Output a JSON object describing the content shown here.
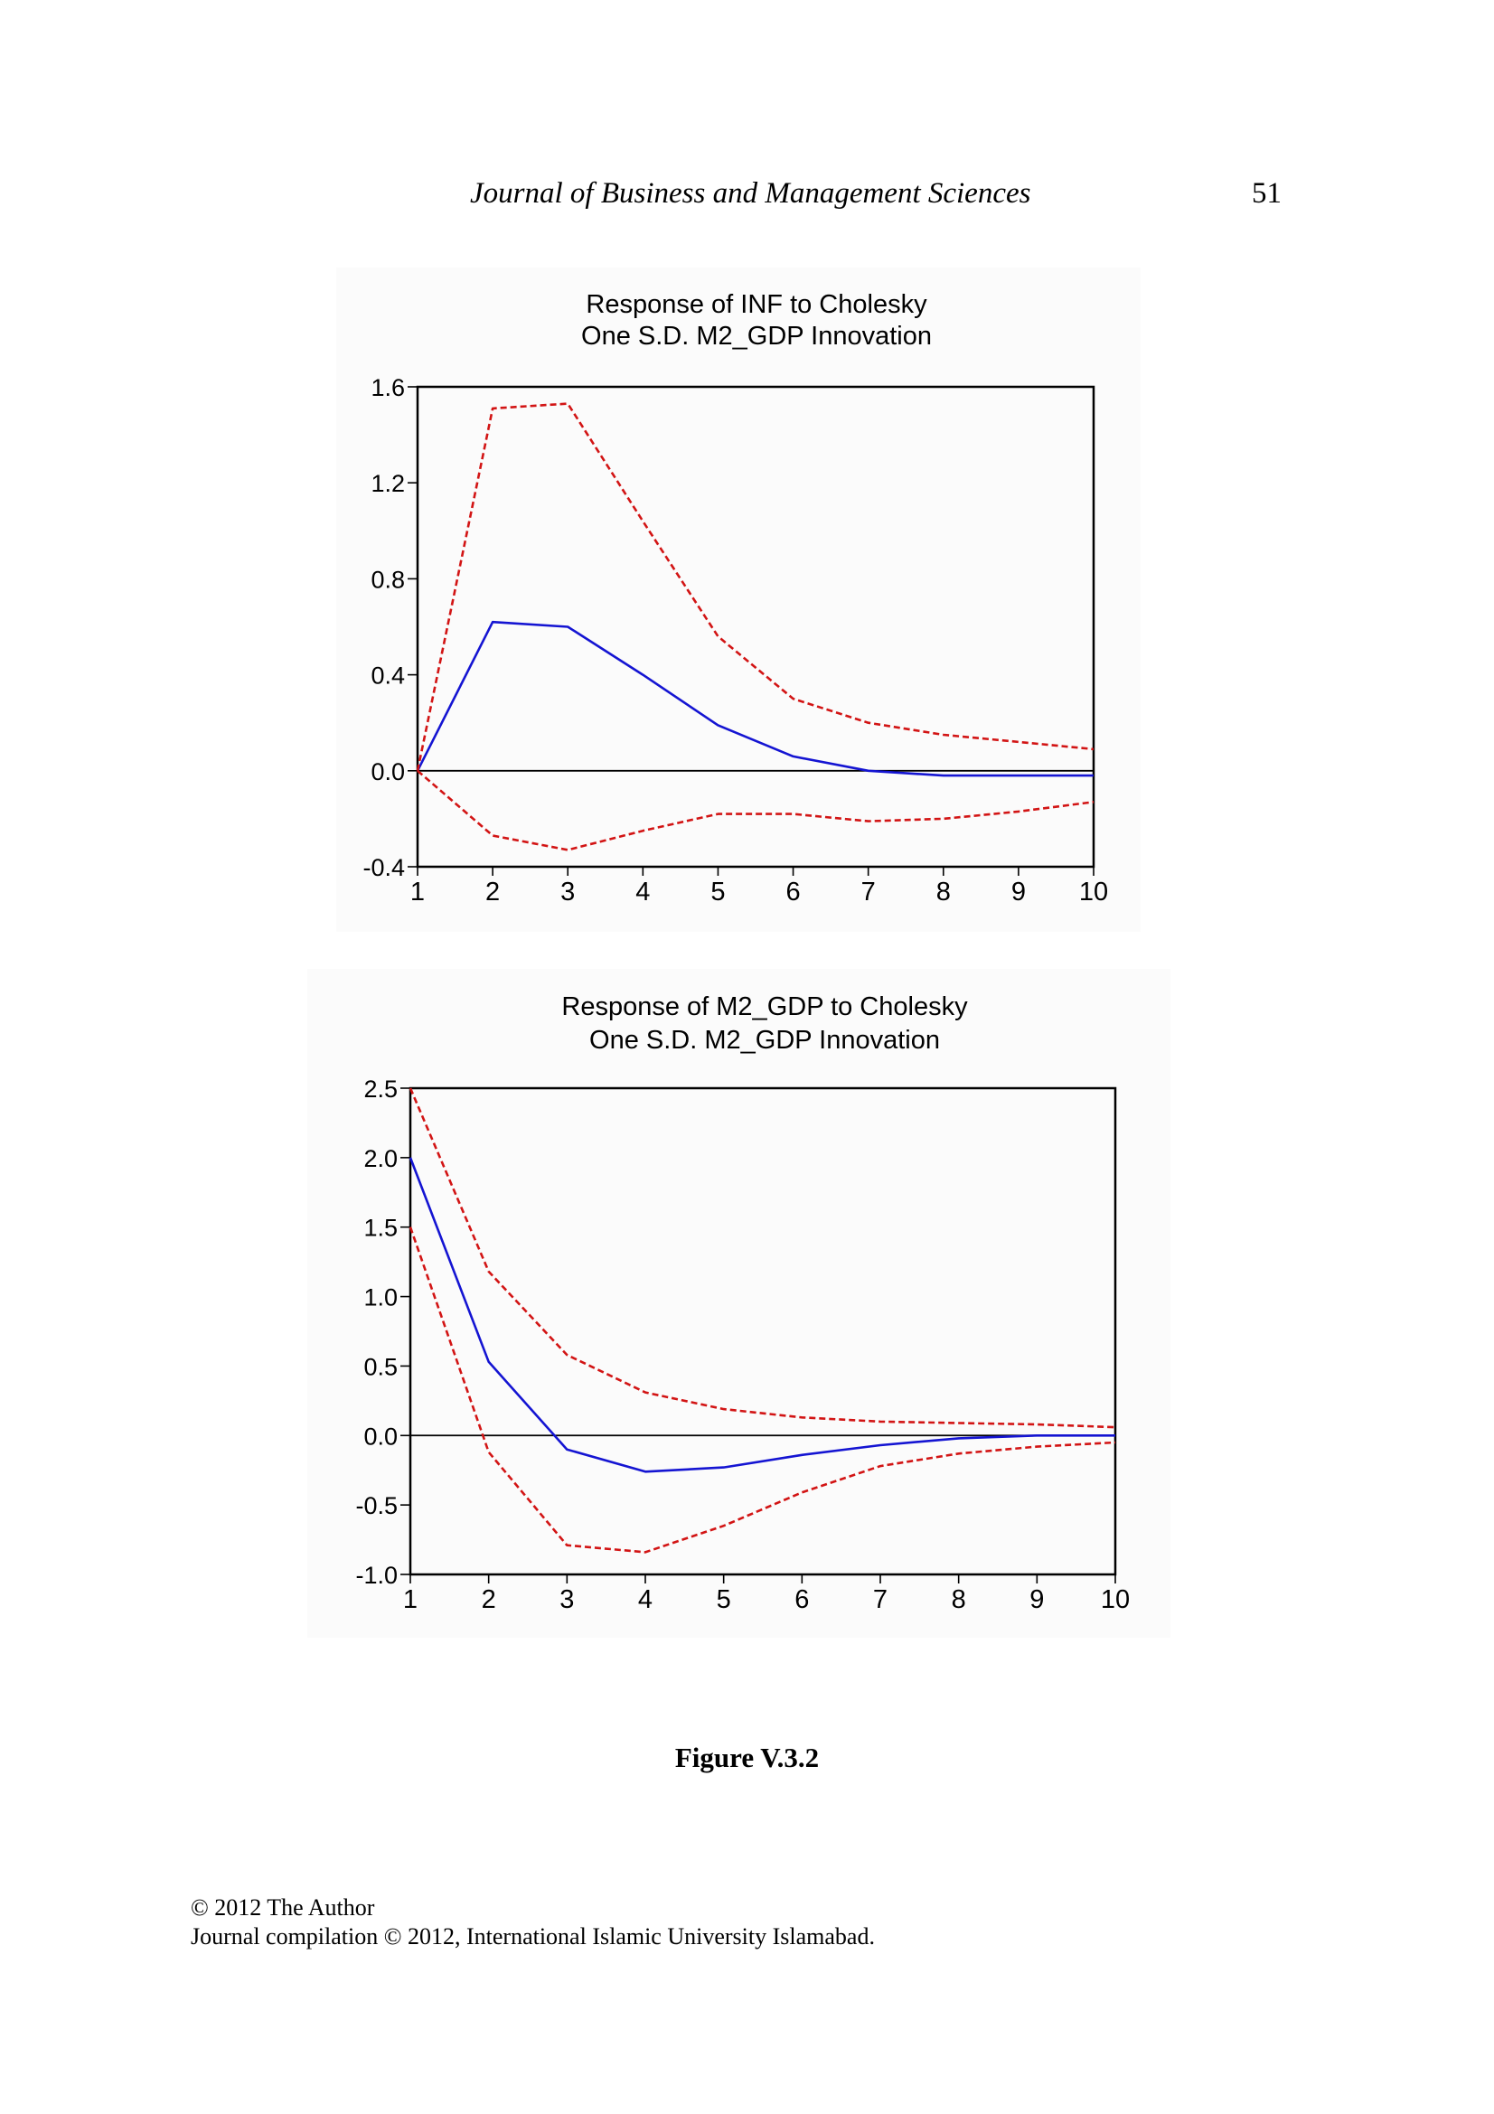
{
  "header": {
    "journal": "Journal of Business and Management Sciences",
    "page_number": "51"
  },
  "figure_caption": "Figure V.3.2",
  "footer": {
    "copyright": "© 2012 The Author",
    "compilation": "Journal compilation © 2012, International Islamic University Islamabad."
  },
  "colors": {
    "response": "#1414d2",
    "bands": "#d21414"
  },
  "chart_data": [
    {
      "type": "line",
      "title": [
        "Response of INF to Cholesky",
        "One S.D. M2_GDP Innovation"
      ],
      "x": [
        1,
        2,
        3,
        4,
        5,
        6,
        7,
        8,
        9,
        10
      ],
      "xlim": [
        1,
        10
      ],
      "ylim": [
        -0.4,
        1.6
      ],
      "y_ticks": [
        "1.6",
        "1.2",
        "0.8",
        "0.4",
        "0.0",
        "-0.4"
      ],
      "y_tick_values": [
        1.6,
        1.2,
        0.8,
        0.4,
        0.0,
        -0.4
      ],
      "zero_line": true,
      "series": [
        {
          "role": "response",
          "style": "solid",
          "color": "#1414d2",
          "values": [
            0.0,
            0.62,
            0.6,
            0.4,
            0.19,
            0.06,
            0.0,
            -0.02,
            -0.02,
            -0.02
          ]
        },
        {
          "role": "upper_band",
          "style": "dashed",
          "color": "#d21414",
          "values": [
            0.0,
            1.51,
            1.53,
            1.04,
            0.56,
            0.3,
            0.2,
            0.15,
            0.12,
            0.09
          ]
        },
        {
          "role": "lower_band",
          "style": "dashed",
          "color": "#d21414",
          "values": [
            0.0,
            -0.27,
            -0.33,
            -0.25,
            -0.18,
            -0.18,
            -0.21,
            -0.2,
            -0.17,
            -0.13
          ]
        }
      ]
    },
    {
      "type": "line",
      "title": [
        "Response of M2_GDP to Cholesky",
        "One S.D. M2_GDP Innovation"
      ],
      "x": [
        1,
        2,
        3,
        4,
        5,
        6,
        7,
        8,
        9,
        10
      ],
      "xlim": [
        1,
        10
      ],
      "ylim": [
        -1.0,
        2.5
      ],
      "y_ticks": [
        "2.5",
        "2.0",
        "1.5",
        "1.0",
        "0.5",
        "0.0",
        "-0.5",
        "-1.0"
      ],
      "y_tick_values": [
        2.5,
        2.0,
        1.5,
        1.0,
        0.5,
        0.0,
        -0.5,
        -1.0
      ],
      "zero_line": true,
      "series": [
        {
          "role": "response",
          "style": "solid",
          "color": "#1414d2",
          "values": [
            2.0,
            0.53,
            -0.1,
            -0.26,
            -0.23,
            -0.14,
            -0.07,
            -0.02,
            0.0,
            0.0
          ]
        },
        {
          "role": "upper_band",
          "style": "dashed",
          "color": "#d21414",
          "values": [
            2.5,
            1.18,
            0.58,
            0.31,
            0.19,
            0.13,
            0.1,
            0.09,
            0.08,
            0.06
          ]
        },
        {
          "role": "lower_band",
          "style": "dashed",
          "color": "#d21414",
          "values": [
            1.5,
            -0.12,
            -0.79,
            -0.84,
            -0.65,
            -0.41,
            -0.22,
            -0.13,
            -0.08,
            -0.05
          ]
        }
      ]
    }
  ]
}
